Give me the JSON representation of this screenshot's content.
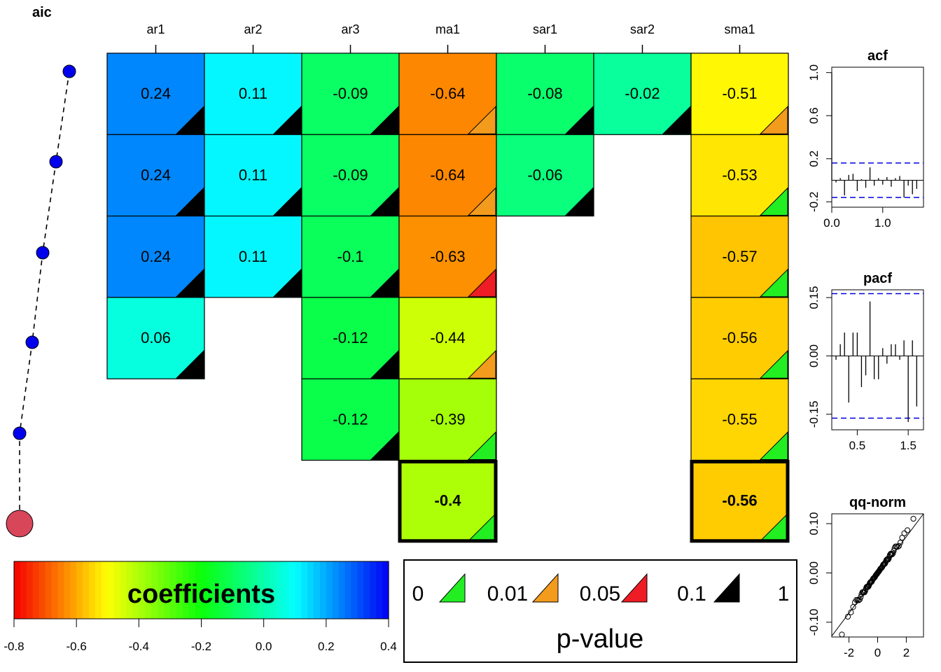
{
  "chart_data": [
    {
      "type": "heatmap",
      "title": "",
      "columns": [
        "ar1",
        "ar2",
        "ar3",
        "ma1",
        "sar1",
        "sar2",
        "sma1"
      ],
      "rows": [
        [
          0.24,
          0.11,
          -0.09,
          -0.64,
          -0.08,
          -0.02,
          -0.51
        ],
        [
          0.24,
          0.11,
          -0.09,
          -0.64,
          -0.06,
          null,
          -0.53
        ],
        [
          0.24,
          0.11,
          -0.1,
          -0.63,
          null,
          null,
          -0.57
        ],
        [
          0.06,
          null,
          -0.12,
          -0.44,
          null,
          null,
          -0.56
        ],
        [
          null,
          null,
          -0.12,
          -0.39,
          null,
          null,
          -0.55
        ],
        [
          null,
          null,
          null,
          -0.4,
          null,
          null,
          -0.56
        ]
      ],
      "pvalue_class": [
        [
          "1",
          "1",
          "1",
          "0.01",
          "1",
          "1",
          "0.01"
        ],
        [
          "1",
          "1",
          "1",
          "0.01",
          "1",
          null,
          "0"
        ],
        [
          "1",
          "1",
          "1",
          "0.05",
          null,
          null,
          "0"
        ],
        [
          "1",
          null,
          "1",
          "0.01",
          null,
          null,
          "0"
        ],
        [
          null,
          null,
          "1",
          "0",
          null,
          null,
          "0"
        ],
        [
          null,
          null,
          null,
          "0",
          null,
          null,
          "0"
        ]
      ],
      "selected_row": 5,
      "value_range": [
        -0.8,
        0.4
      ]
    },
    {
      "type": "line",
      "title": "aic",
      "points": [
        6,
        5,
        4,
        3,
        2,
        1
      ],
      "selected": 1
    },
    {
      "type": "bar",
      "title": "acf",
      "xlim": [
        0,
        1.8
      ],
      "ylim": [
        -0.25,
        1.05
      ],
      "xticks": [
        "0.0",
        "1.0"
      ],
      "xtick_values": [
        0,
        1
      ],
      "yticks": [
        "-0.2",
        "0.2",
        "0.6",
        "1.0"
      ],
      "ytick_values": [
        -0.2,
        0.2,
        0.6,
        1.0
      ],
      "ci": 0.16,
      "lags": [
        0,
        0.083,
        0.167,
        0.25,
        0.333,
        0.417,
        0.5,
        0.583,
        0.667,
        0.75,
        0.833,
        0.917,
        1.0,
        1.083,
        1.167,
        1.25,
        1.333,
        1.417,
        1.5,
        1.583,
        1.667
      ],
      "values": [
        1.0,
        -0.02,
        0.02,
        -0.14,
        0.05,
        0.06,
        -0.1,
        0.01,
        -0.07,
        0.12,
        -0.05,
        0.02,
        -0.04,
        0.03,
        -0.06,
        0.02,
        0.04,
        -0.16,
        -0.05,
        -0.13,
        -0.08
      ]
    },
    {
      "type": "bar",
      "title": "pacf",
      "xlim": [
        0,
        1.8
      ],
      "ylim": [
        -0.19,
        0.17
      ],
      "xticks": [
        "0.5",
        "1.5"
      ],
      "xtick_values": [
        0.5,
        1.5
      ],
      "yticks": [
        "-0.15",
        "0.00",
        "0.15"
      ],
      "ytick_values": [
        -0.15,
        0.0,
        0.15
      ],
      "ci": 0.16,
      "lags": [
        0.083,
        0.167,
        0.25,
        0.333,
        0.417,
        0.5,
        0.583,
        0.667,
        0.75,
        0.833,
        0.917,
        1.0,
        1.083,
        1.167,
        1.25,
        1.333,
        1.417,
        1.5,
        1.583,
        1.667
      ],
      "values": [
        -0.01,
        0.03,
        0.06,
        -0.12,
        0.06,
        0.06,
        -0.08,
        -0.05,
        0.14,
        -0.06,
        -0.06,
        0.02,
        -0.02,
        0.03,
        0.03,
        -0.01,
        0.04,
        -0.17,
        0.04,
        -0.13
      ]
    },
    {
      "type": "scatter",
      "title": "qq-norm",
      "xlim": [
        -3.2,
        3.2
      ],
      "ylim": [
        -0.13,
        0.12
      ],
      "xticks": [
        "-2",
        "0",
        "2"
      ],
      "xtick_values": [
        -2,
        0,
        2
      ],
      "yticks": [
        "-0.10",
        "0.00",
        "0.10"
      ],
      "ytick_values": [
        -0.1,
        0.0,
        0.1
      ],
      "line": {
        "intercept": 0.0,
        "slope": 0.04
      }
    }
  ],
  "legend": {
    "coefficients": {
      "label": "coefficients",
      "ticks": [
        "-0.8",
        "-0.6",
        "-0.4",
        "-0.2",
        "0.0",
        "0.2",
        "0.4"
      ]
    },
    "pvalue": {
      "title": "p-value",
      "breaks": [
        "0",
        "0.01",
        "0.05",
        "0.1",
        "1"
      ],
      "colors": [
        "#22ee22",
        "#f39b1d",
        "#ee1c25",
        "#000000"
      ]
    }
  }
}
